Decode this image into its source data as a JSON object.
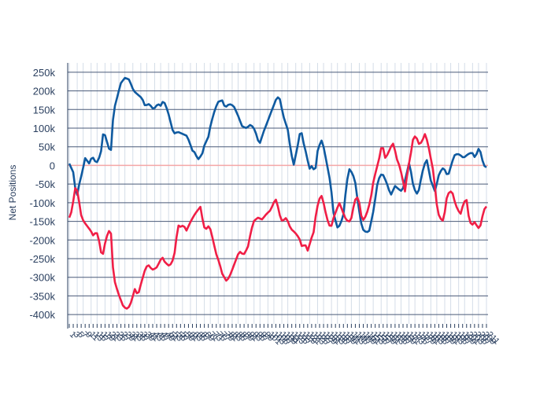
{
  "chart_data": {
    "type": "line",
    "title": "",
    "xlabel": "",
    "ylabel": "Net Positions",
    "ylim": [
      -425000,
      275000
    ],
    "yticks": [
      250000,
      200000,
      150000,
      100000,
      50000,
      0,
      -50000,
      -100000,
      -150000,
      -200000,
      -250000,
      -300000,
      -350000,
      -400000
    ],
    "ytick_labels": [
      "250k",
      "200k",
      "150k",
      "100k",
      "50k",
      "0",
      "-50k",
      "-100k",
      "-150k",
      "-200k",
      "-250k",
      "-300k",
      "-350k",
      "-400k"
    ],
    "n_points": 211,
    "grid": true,
    "zero_line_color": "#f4a6a6",
    "legend": "none",
    "series": [
      {
        "color": "#0f5aa0",
        "keypoints": [
          [
            0,
            5000
          ],
          [
            3,
            -20000
          ],
          [
            5,
            -90000
          ],
          [
            7,
            -50000
          ],
          [
            9,
            -20000
          ],
          [
            11,
            20000
          ],
          [
            14,
            5000
          ],
          [
            16,
            25000
          ],
          [
            19,
            5000
          ],
          [
            22,
            30000
          ],
          [
            24,
            95000
          ],
          [
            27,
            55000
          ],
          [
            29,
            30000
          ],
          [
            31,
            145000
          ],
          [
            34,
            190000
          ],
          [
            36,
            220000
          ],
          [
            39,
            235000
          ],
          [
            42,
            230000
          ],
          [
            45,
            200000
          ],
          [
            48,
            190000
          ],
          [
            51,
            180000
          ],
          [
            53,
            160000
          ],
          [
            56,
            165000
          ],
          [
            59,
            150000
          ],
          [
            62,
            165000
          ],
          [
            64,
            160000
          ],
          [
            66,
            175000
          ],
          [
            69,
            145000
          ],
          [
            71,
            115000
          ],
          [
            73,
            85000
          ],
          [
            76,
            90000
          ],
          [
            79,
            85000
          ],
          [
            82,
            80000
          ],
          [
            84,
            65000
          ],
          [
            86,
            40000
          ],
          [
            88,
            35000
          ],
          [
            90,
            15000
          ],
          [
            93,
            30000
          ],
          [
            95,
            60000
          ],
          [
            97,
            70000
          ],
          [
            99,
            110000
          ],
          [
            102,
            150000
          ],
          [
            104,
            170000
          ],
          [
            107,
            175000
          ],
          [
            109,
            155000
          ],
          [
            112,
            165000
          ],
          [
            115,
            160000
          ],
          [
            118,
            135000
          ],
          [
            121,
            105000
          ],
          [
            124,
            100000
          ],
          [
            127,
            110000
          ],
          [
            130,
            95000
          ],
          [
            133,
            55000
          ],
          [
            136,
            90000
          ],
          [
            139,
            120000
          ],
          [
            142,
            150000
          ],
          [
            145,
            180000
          ],
          [
            147,
            185000
          ],
          [
            150,
            130000
          ],
          [
            153,
            95000
          ],
          [
            155,
            40000
          ],
          [
            157,
            0
          ],
          [
            160,
            55000
          ],
          [
            162,
            100000
          ],
          [
            164,
            60000
          ],
          [
            166,
            30000
          ],
          [
            168,
            -10000
          ],
          [
            170,
            0
          ],
          [
            172,
            -20000
          ],
          [
            174,
            45000
          ],
          [
            177,
            70000
          ],
          [
            180,
            10000
          ],
          [
            183,
            -50000
          ],
          [
            185,
            -130000
          ],
          [
            188,
            -170000
          ],
          [
            190,
            -155000
          ],
          [
            192,
            -130000
          ],
          [
            194,
            -50000
          ],
          [
            196,
            -10000
          ],
          [
            198,
            -20000
          ],
          [
            200,
            -40000
          ],
          [
            202,
            -100000
          ],
          [
            205,
            -170000
          ],
          [
            208,
            -180000
          ],
          [
            210,
            -175000
          ],
          [
            213,
            -120000
          ],
          [
            216,
            -40000
          ],
          [
            219,
            -20000
          ],
          [
            222,
            -45000
          ],
          [
            225,
            -80000
          ],
          [
            228,
            -55000
          ],
          [
            231,
            -65000
          ],
          [
            233,
            -70000
          ],
          [
            236,
            -25000
          ],
          [
            238,
            10000
          ],
          [
            241,
            -60000
          ],
          [
            244,
            -80000
          ],
          [
            247,
            -20000
          ],
          [
            250,
            20000
          ],
          [
            253,
            -40000
          ],
          [
            256,
            -70000
          ],
          [
            259,
            -20000
          ],
          [
            262,
            -5000
          ],
          [
            265,
            -30000
          ],
          [
            268,
            10000
          ],
          [
            270,
            30000
          ],
          [
            273,
            30000
          ],
          [
            276,
            20000
          ],
          [
            279,
            30000
          ],
          [
            282,
            35000
          ],
          [
            284,
            20000
          ],
          [
            287,
            50000
          ],
          [
            290,
            0
          ],
          [
            292,
            -5000
          ]
        ]
      },
      {
        "color": "#f01e46",
        "keypoints": [
          [
            0,
            -140000
          ],
          [
            2,
            -120000
          ],
          [
            4,
            -60000
          ],
          [
            6,
            -70000
          ],
          [
            8,
            -130000
          ],
          [
            10,
            -150000
          ],
          [
            12,
            -160000
          ],
          [
            15,
            -175000
          ],
          [
            17,
            -190000
          ],
          [
            19,
            -175000
          ],
          [
            21,
            -205000
          ],
          [
            23,
            -250000
          ],
          [
            25,
            -210000
          ],
          [
            27,
            -180000
          ],
          [
            29,
            -170000
          ],
          [
            31,
            -300000
          ],
          [
            34,
            -340000
          ],
          [
            36,
            -360000
          ],
          [
            38,
            -380000
          ],
          [
            41,
            -385000
          ],
          [
            43,
            -370000
          ],
          [
            46,
            -330000
          ],
          [
            48,
            -350000
          ],
          [
            50,
            -320000
          ],
          [
            53,
            -280000
          ],
          [
            55,
            -265000
          ],
          [
            58,
            -280000
          ],
          [
            61,
            -275000
          ],
          [
            63,
            -260000
          ],
          [
            65,
            -245000
          ],
          [
            67,
            -260000
          ],
          [
            70,
            -270000
          ],
          [
            72,
            -260000
          ],
          [
            74,
            -230000
          ],
          [
            76,
            -160000
          ],
          [
            78,
            -165000
          ],
          [
            80,
            -160000
          ],
          [
            82,
            -175000
          ],
          [
            85,
            -150000
          ],
          [
            88,
            -130000
          ],
          [
            90,
            -120000
          ],
          [
            92,
            -110000
          ],
          [
            94,
            -165000
          ],
          [
            96,
            -170000
          ],
          [
            98,
            -160000
          ],
          [
            100,
            -190000
          ],
          [
            103,
            -240000
          ],
          [
            105,
            -260000
          ],
          [
            107,
            -290000
          ],
          [
            110,
            -310000
          ],
          [
            112,
            -300000
          ],
          [
            115,
            -270000
          ],
          [
            117,
            -250000
          ],
          [
            119,
            -230000
          ],
          [
            122,
            -240000
          ],
          [
            125,
            -220000
          ],
          [
            127,
            -180000
          ],
          [
            129,
            -150000
          ],
          [
            132,
            -140000
          ],
          [
            135,
            -145000
          ],
          [
            138,
            -130000
          ],
          [
            141,
            -120000
          ],
          [
            143,
            -100000
          ],
          [
            145,
            -90000
          ],
          [
            147,
            -130000
          ],
          [
            149,
            -150000
          ],
          [
            152,
            -140000
          ],
          [
            155,
            -170000
          ],
          [
            158,
            -180000
          ],
          [
            161,
            -195000
          ],
          [
            163,
            -220000
          ],
          [
            165,
            -210000
          ],
          [
            167,
            -230000
          ],
          [
            169,
            -200000
          ],
          [
            171,
            -180000
          ],
          [
            173,
            -120000
          ],
          [
            175,
            -90000
          ],
          [
            177,
            -80000
          ],
          [
            179,
            -120000
          ],
          [
            181,
            -150000
          ],
          [
            183,
            -170000
          ],
          [
            185,
            -140000
          ],
          [
            187,
            -120000
          ],
          [
            189,
            -100000
          ],
          [
            191,
            -120000
          ],
          [
            193,
            -140000
          ],
          [
            195,
            -150000
          ],
          [
            197,
            -150000
          ],
          [
            199,
            -110000
          ],
          [
            201,
            -80000
          ],
          [
            203,
            -100000
          ],
          [
            205,
            -150000
          ],
          [
            207,
            -140000
          ],
          [
            209,
            -120000
          ],
          [
            211,
            -90000
          ],
          [
            213,
            -40000
          ],
          [
            215,
            -10000
          ],
          [
            217,
            20000
          ],
          [
            219,
            60000
          ],
          [
            221,
            20000
          ],
          [
            223,
            30000
          ],
          [
            225,
            50000
          ],
          [
            227,
            60000
          ],
          [
            229,
            20000
          ],
          [
            231,
            0
          ],
          [
            233,
            -30000
          ],
          [
            235,
            -70000
          ],
          [
            237,
            -10000
          ],
          [
            239,
            30000
          ],
          [
            241,
            80000
          ],
          [
            243,
            75000
          ],
          [
            245,
            55000
          ],
          [
            247,
            65000
          ],
          [
            249,
            85000
          ],
          [
            251,
            60000
          ],
          [
            253,
            20000
          ],
          [
            255,
            -20000
          ],
          [
            257,
            -100000
          ],
          [
            259,
            -140000
          ],
          [
            262,
            -150000
          ],
          [
            264,
            -90000
          ],
          [
            266,
            -70000
          ],
          [
            268,
            -70000
          ],
          [
            270,
            -100000
          ],
          [
            272,
            -120000
          ],
          [
            274,
            -130000
          ],
          [
            276,
            -100000
          ],
          [
            278,
            -90000
          ],
          [
            280,
            -150000
          ],
          [
            282,
            -160000
          ],
          [
            284,
            -150000
          ],
          [
            286,
            -170000
          ],
          [
            288,
            -160000
          ],
          [
            290,
            -120000
          ],
          [
            292,
            -110000
          ]
        ]
      }
    ],
    "x_tick_labels": [
      "1",
      "2",
      "3",
      "4",
      "5",
      "6",
      "7",
      "8",
      "9",
      "10",
      "11",
      "12",
      "13",
      "14",
      "15",
      "16",
      "17",
      "18",
      "19",
      "20",
      "21",
      "22",
      "23",
      "24",
      "25",
      "26",
      "27",
      "28",
      "29",
      "30",
      "31",
      "32",
      "33",
      "34",
      "35",
      "36",
      "37",
      "38",
      "39",
      "40",
      "41",
      "42",
      "43",
      "44",
      "45",
      "46",
      "47",
      "48",
      "49",
      "50",
      "51",
      "52",
      "53",
      "54",
      "55",
      "56",
      "57",
      "58",
      "59",
      "60",
      "61",
      "62",
      "63",
      "64",
      "65",
      "66",
      "67",
      "68",
      "69",
      "70",
      "71",
      "72",
      "73",
      "74",
      "75",
      "76",
      "77",
      "78",
      "79",
      "80",
      "81",
      "82",
      "83",
      "84",
      "85",
      "86",
      "87",
      "88",
      "89",
      "90",
      "91",
      "92",
      "93",
      "94",
      "95",
      "96",
      "97",
      "98",
      "99",
      "100",
      "101",
      "102",
      "103",
      "104",
      "105",
      "106",
      "107",
      "108",
      "109",
      "110",
      "111",
      "112",
      "113",
      "114",
      "115",
      "116",
      "117",
      "118",
      "119",
      "120",
      "121",
      "122",
      "123",
      "124",
      "125",
      "126",
      "127",
      "128",
      "129",
      "130",
      "131",
      "132",
      "133",
      "134",
      "135",
      "136",
      "137",
      "138",
      "139",
      "140",
      "141",
      "142",
      "143",
      "144",
      "145",
      "146",
      "147",
      "148",
      "149",
      "150",
      "151",
      "152",
      "153",
      "154",
      "155",
      "156",
      "157",
      "158",
      "159",
      "160",
      "161",
      "162",
      "163",
      "164",
      "165",
      "166",
      "167",
      "168",
      "169",
      "170",
      "171",
      "172",
      "173",
      "174",
      "175",
      "176",
      "177",
      "178",
      "179",
      "180",
      "181",
      "182",
      "183",
      "184",
      "185",
      "186",
      "187",
      "188",
      "189",
      "190",
      "191",
      "192",
      "193",
      "194",
      "195",
      "196",
      "197",
      "198",
      "199",
      "200",
      "201",
      "202",
      "203",
      "204",
      "205",
      "206",
      "207",
      "208",
      "209",
      "210",
      "211"
    ]
  }
}
